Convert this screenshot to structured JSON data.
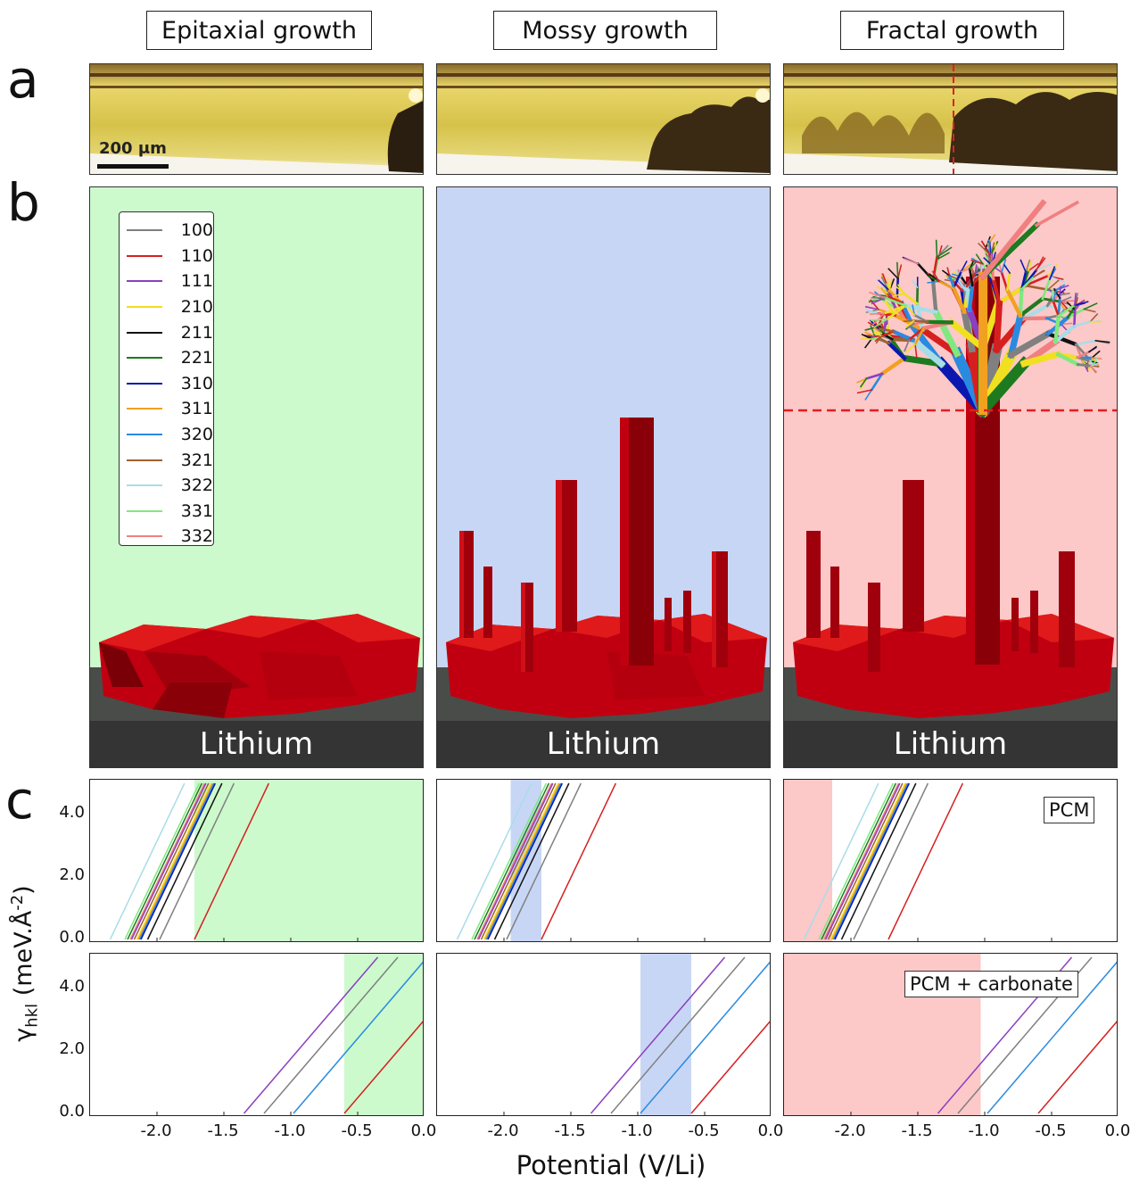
{
  "columns": [
    {
      "title": "Epitaxial growth",
      "shade": "#ccfacc"
    },
    {
      "title": "Mossy growth",
      "shade": "#c8d6f5"
    },
    {
      "title": "Fractal growth",
      "shade": "#fcc8c8"
    }
  ],
  "panel_letters": {
    "a": "a",
    "b": "b",
    "c": "c"
  },
  "scale_bar": "200 μm",
  "substrate_label": "Lithium",
  "legend": [
    {
      "label": "100",
      "color": "#808080"
    },
    {
      "label": "110",
      "color": "#d62020"
    },
    {
      "label": "111",
      "color": "#8c3fc0"
    },
    {
      "label": "210",
      "color": "#f0e020"
    },
    {
      "label": "211",
      "color": "#111111"
    },
    {
      "label": "221",
      "color": "#1e7a1e"
    },
    {
      "label": "310",
      "color": "#0a18b0"
    },
    {
      "label": "311",
      "color": "#f2a020"
    },
    {
      "label": "320",
      "color": "#2a8ae0"
    },
    {
      "label": "321",
      "color": "#a06030"
    },
    {
      "label": "322",
      "color": "#a8dde8"
    },
    {
      "label": "331",
      "color": "#80e880"
    },
    {
      "label": "332",
      "color": "#f08080"
    }
  ],
  "plot_labels": {
    "row1_tag": "PCM",
    "row2_tag": "PCM + carbonate",
    "ylabel": "γhkl (meV.Å-2)",
    "ylabel_main": "γ",
    "ylabel_sub": "hkl",
    "ylabel_rest": " (meV.Å",
    "ylabel_sup": "-2",
    "ylabel_close": ")",
    "xlabel": "Potential (V/Li)",
    "yticks": [
      "0.0",
      "2.0",
      "4.0"
    ],
    "xticks": [
      "-2.0",
      "-1.5",
      "-1.0",
      "-0.5",
      "0.0"
    ]
  },
  "chart_data": {
    "type": "line",
    "xlim": [
      -2.5,
      0.0
    ],
    "ylim": [
      0.0,
      5.0
    ],
    "xlabel": "Potential (V/Li)",
    "ylabel": "γhkl (meV.Å-2)",
    "rows": [
      {
        "name": "PCM",
        "slope": 9.0,
        "lines": [
          {
            "hkl": "322",
            "x0": -2.35
          },
          {
            "hkl": "331",
            "x0": -2.24
          },
          {
            "hkl": "221",
            "x0": -2.22
          },
          {
            "hkl": "332",
            "x0": -2.2
          },
          {
            "hkl": "111",
            "x0": -2.19
          },
          {
            "hkl": "321",
            "x0": -2.17
          },
          {
            "hkl": "210",
            "x0": -2.15
          },
          {
            "hkl": "311",
            "x0": -2.14
          },
          {
            "hkl": "320",
            "x0": -2.13
          },
          {
            "hkl": "310",
            "x0": -2.12
          },
          {
            "hkl": "211",
            "x0": -2.07
          },
          {
            "hkl": "100",
            "x0": -1.98
          },
          {
            "hkl": "110",
            "x0": -1.72
          }
        ],
        "shaded": [
          [
            -1.72,
            0.0
          ],
          [
            -1.95,
            -1.72
          ],
          [
            -2.5,
            -2.14
          ]
        ]
      },
      {
        "name": "PCM + carbonate",
        "slope": 5.0,
        "lines": [
          {
            "hkl": "111",
            "x0": -1.35
          },
          {
            "hkl": "100",
            "x0": -1.2
          },
          {
            "hkl": "320",
            "x0": -0.98
          },
          {
            "hkl": "110",
            "x0": -0.6
          }
        ],
        "shaded": [
          [
            -0.6,
            0.0
          ],
          [
            -0.98,
            -0.6
          ],
          [
            -2.5,
            -1.03
          ]
        ]
      }
    ]
  }
}
